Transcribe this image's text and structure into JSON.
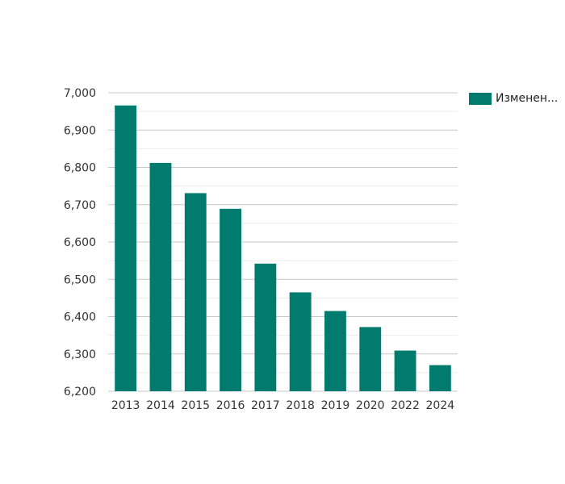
{
  "chart_data": {
    "type": "bar",
    "categories": [
      "2013",
      "2014",
      "2015",
      "2016",
      "2017",
      "2018",
      "2019",
      "2020",
      "2022",
      "2024"
    ],
    "series": [
      {
        "name": "Изменен...",
        "values": [
          6966,
          6812,
          6731,
          6689,
          6542,
          6465,
          6415,
          6372,
          6309,
          6270
        ],
        "color": "#007b6e"
      }
    ],
    "ylim": [
      6200,
      7000
    ],
    "yticks": [
      "6,200",
      "6,300",
      "6,400",
      "6,500",
      "6,600",
      "6,700",
      "6,800",
      "6,900",
      "7,000"
    ],
    "grid": true,
    "legend_position": "top-right"
  }
}
